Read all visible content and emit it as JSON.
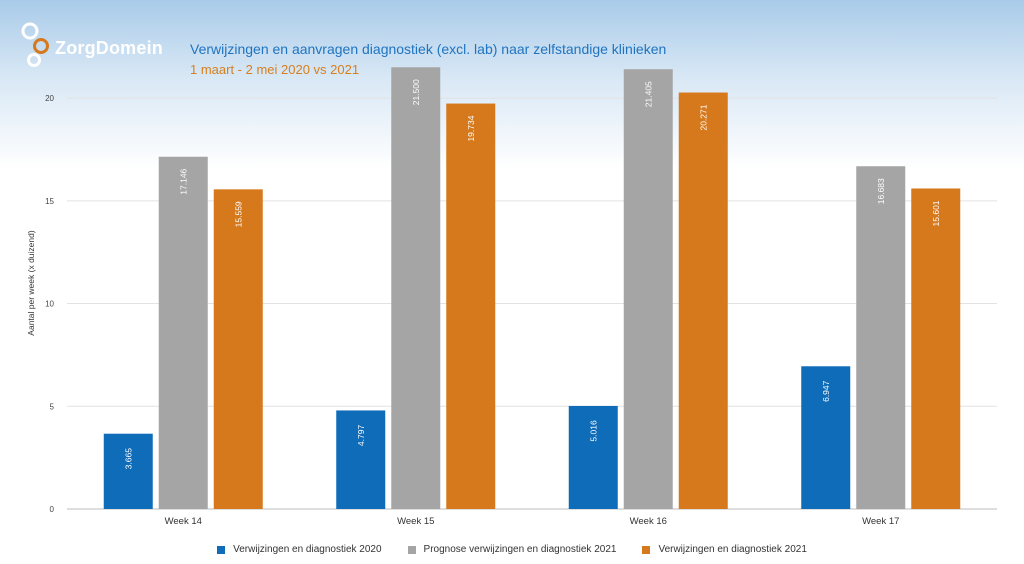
{
  "brand": {
    "name": "ZorgDomein"
  },
  "header": {
    "title": "Verwijzingen en aanvragen diagnostiek (excl. lab) naar zelfstandige klinieken",
    "subtitle": "1 maart - 2 mei 2020 vs 2021"
  },
  "chart_data": {
    "type": "bar",
    "categories": [
      "Week 14",
      "Week 15",
      "Week 16",
      "Week 17"
    ],
    "series": [
      {
        "name": "Verwijzingen en diagnostiek 2020",
        "color": "#0f6cb8",
        "values": [
          3.665,
          4.797,
          5.016,
          6.947
        ],
        "labels": [
          "3.665",
          "4.797",
          "5.016",
          "6.947"
        ]
      },
      {
        "name": "Prognose verwijzingen en diagnostiek 2021",
        "color": "#a5a5a5",
        "values": [
          17.146,
          21.5,
          21.405,
          16.683
        ],
        "labels": [
          "17.146",
          "21.500",
          "21.405",
          "16.683"
        ]
      },
      {
        "name": "Verwijzingen en diagnostiek 2021",
        "color": "#d6791c",
        "values": [
          15.559,
          19.734,
          20.271,
          15.601
        ],
        "labels": [
          "15.559",
          "19.734",
          "20.271",
          "15.601"
        ]
      }
    ],
    "ylabel": "Aantal per week (x duizend)",
    "xlabel": "",
    "ylim": [
      0,
      22
    ],
    "yticks": [
      0,
      5,
      10,
      15,
      20
    ],
    "grid": true,
    "legend": "bottom"
  }
}
